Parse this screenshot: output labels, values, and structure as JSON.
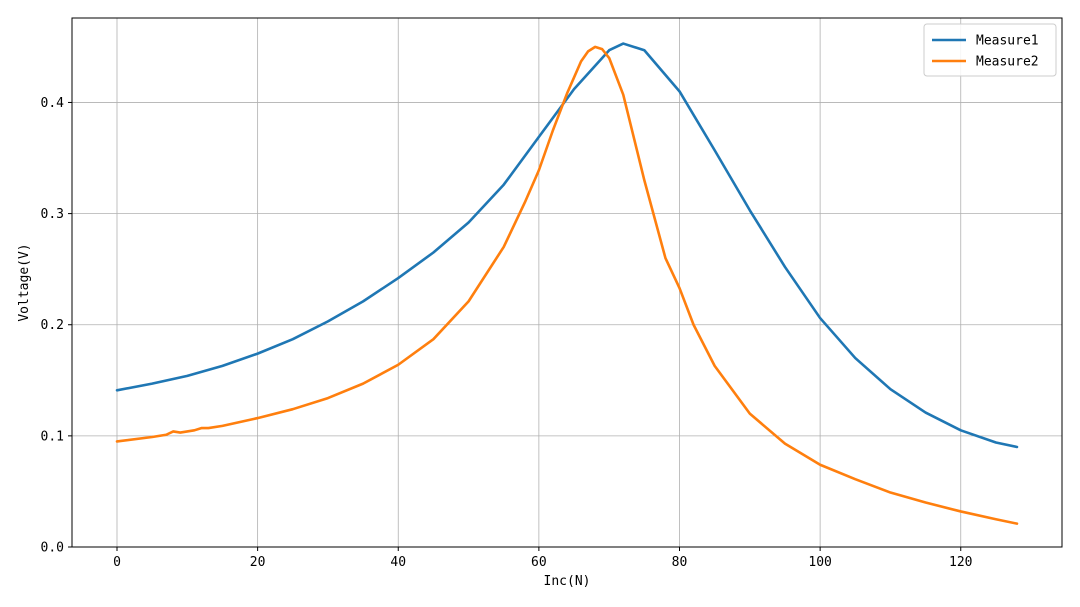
{
  "chart_data": {
    "type": "line",
    "xlabel": "Inc(N)",
    "ylabel": "Voltage(V)",
    "xlim": [
      -6.4,
      134.4
    ],
    "ylim": [
      0.0,
      0.476
    ],
    "grid": true,
    "legend_position": "top-right",
    "x_ticks": [
      0,
      20,
      40,
      60,
      80,
      100,
      120
    ],
    "x_tick_labels": [
      "0",
      "20",
      "40",
      "60",
      "80",
      "100",
      "120"
    ],
    "y_ticks": [
      0.0,
      0.1,
      0.2,
      0.3,
      0.4
    ],
    "y_tick_labels": [
      "0.0",
      "0.1",
      "0.2",
      "0.3",
      "0.4"
    ],
    "series": [
      {
        "name": "Measure1",
        "color": "#1f77b4",
        "points": [
          [
            0,
            0.141
          ],
          [
            5,
            0.147
          ],
          [
            10,
            0.154
          ],
          [
            15,
            0.163
          ],
          [
            20,
            0.174
          ],
          [
            25,
            0.187
          ],
          [
            30,
            0.203
          ],
          [
            35,
            0.221
          ],
          [
            40,
            0.242
          ],
          [
            45,
            0.265
          ],
          [
            50,
            0.292
          ],
          [
            55,
            0.326
          ],
          [
            60,
            0.369
          ],
          [
            65,
            0.412
          ],
          [
            70,
            0.447
          ],
          [
            72,
            0.453
          ],
          [
            75,
            0.447
          ],
          [
            80,
            0.41
          ],
          [
            85,
            0.357
          ],
          [
            90,
            0.303
          ],
          [
            95,
            0.252
          ],
          [
            100,
            0.206
          ],
          [
            105,
            0.17
          ],
          [
            110,
            0.142
          ],
          [
            115,
            0.121
          ],
          [
            120,
            0.105
          ],
          [
            125,
            0.094
          ],
          [
            128,
            0.09
          ]
        ]
      },
      {
        "name": "Measure2",
        "color": "#ff7f0e",
        "points": [
          [
            0,
            0.095
          ],
          [
            5,
            0.099
          ],
          [
            7,
            0.101
          ],
          [
            8,
            0.104
          ],
          [
            9,
            0.103
          ],
          [
            10,
            0.104
          ],
          [
            11,
            0.105
          ],
          [
            12,
            0.107
          ],
          [
            13,
            0.107
          ],
          [
            15,
            0.109
          ],
          [
            20,
            0.116
          ],
          [
            25,
            0.124
          ],
          [
            30,
            0.134
          ],
          [
            35,
            0.147
          ],
          [
            40,
            0.164
          ],
          [
            45,
            0.187
          ],
          [
            50,
            0.221
          ],
          [
            55,
            0.27
          ],
          [
            58,
            0.31
          ],
          [
            60,
            0.339
          ],
          [
            62,
            0.375
          ],
          [
            64,
            0.408
          ],
          [
            66,
            0.437
          ],
          [
            67,
            0.446
          ],
          [
            68,
            0.45
          ],
          [
            69,
            0.448
          ],
          [
            70,
            0.44
          ],
          [
            72,
            0.407
          ],
          [
            75,
            0.33
          ],
          [
            78,
            0.26
          ],
          [
            80,
            0.233
          ],
          [
            82,
            0.2
          ],
          [
            85,
            0.163
          ],
          [
            90,
            0.12
          ],
          [
            95,
            0.093
          ],
          [
            100,
            0.074
          ],
          [
            105,
            0.061
          ],
          [
            110,
            0.049
          ],
          [
            115,
            0.04
          ],
          [
            120,
            0.032
          ],
          [
            125,
            0.025
          ],
          [
            128,
            0.021
          ]
        ]
      }
    ]
  }
}
